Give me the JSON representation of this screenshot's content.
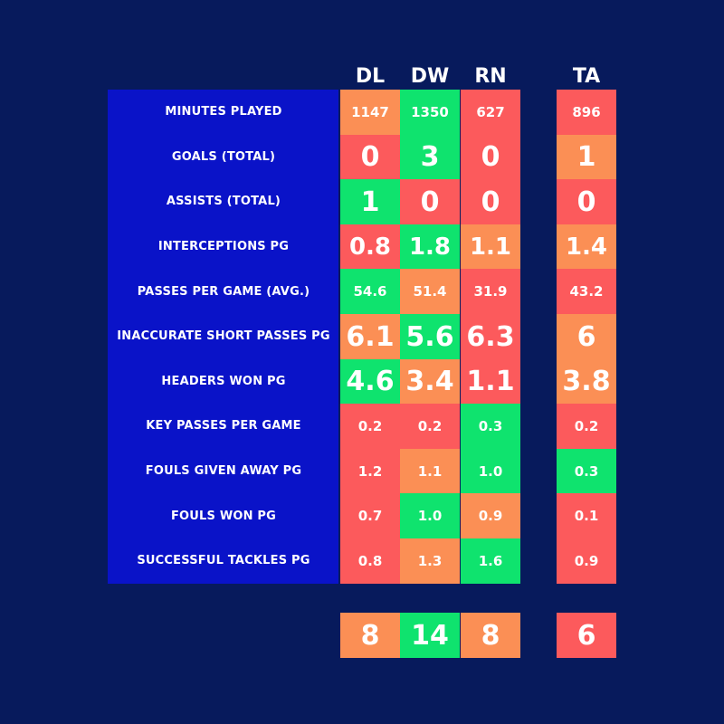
{
  "palette": {
    "background": "#071a5c",
    "label_panel": "#0a13c8",
    "green": "#0fe36e",
    "orange": "#fb8f55",
    "red": "#fc5a5c"
  },
  "chart_data": {
    "type": "table",
    "columns": [
      "DL",
      "DW",
      "RN",
      "TA"
    ],
    "rows": [
      {
        "label": "MINUTES PLAYED",
        "values": [
          "1147",
          "1350",
          "627",
          "896"
        ],
        "colors": [
          "orange",
          "green",
          "red",
          "red"
        ]
      },
      {
        "label": "GOALS (TOTAL)",
        "values": [
          "0",
          "3",
          "0",
          "1"
        ],
        "colors": [
          "red",
          "green",
          "red",
          "orange"
        ]
      },
      {
        "label": "ASSISTS (TOTAL)",
        "values": [
          "1",
          "0",
          "0",
          "0"
        ],
        "colors": [
          "green",
          "red",
          "red",
          "red"
        ]
      },
      {
        "label": "INTERCEPTIONS PG",
        "values": [
          "0.8",
          "1.8",
          "1.1",
          "1.4"
        ],
        "colors": [
          "red",
          "green",
          "orange",
          "orange"
        ]
      },
      {
        "label": "PASSES PER GAME (AVG.)",
        "values": [
          "54.6",
          "51.4",
          "31.9",
          "43.2"
        ],
        "colors": [
          "green",
          "orange",
          "red",
          "red"
        ]
      },
      {
        "label": "INACCURATE SHORT PASSES PG",
        "values": [
          "6.1",
          "5.6",
          "6.3",
          "6"
        ],
        "colors": [
          "orange",
          "green",
          "red",
          "orange"
        ]
      },
      {
        "label": "HEADERS WON PG",
        "values": [
          "4.6",
          "3.4",
          "1.1",
          "3.8"
        ],
        "colors": [
          "green",
          "orange",
          "red",
          "orange"
        ]
      },
      {
        "label": "KEY PASSES PER GAME",
        "values": [
          "0.2",
          "0.2",
          "0.3",
          "0.2"
        ],
        "colors": [
          "red",
          "red",
          "green",
          "red"
        ]
      },
      {
        "label": "FOULS GIVEN AWAY PG",
        "values": [
          "1.2",
          "1.1",
          "1.0",
          "0.3"
        ],
        "colors": [
          "red",
          "orange",
          "green",
          "green"
        ]
      },
      {
        "label": "FOULS WON PG",
        "values": [
          "0.7",
          "1.0",
          "0.9",
          "0.1"
        ],
        "colors": [
          "red",
          "green",
          "orange",
          "red"
        ]
      },
      {
        "label": "SUCCESSFUL TACKLES PG",
        "values": [
          "0.8",
          "1.3",
          "1.6",
          "0.9"
        ],
        "colors": [
          "red",
          "orange",
          "green",
          "red"
        ]
      }
    ],
    "totals": {
      "values": [
        "8",
        "14",
        "8",
        "6"
      ],
      "colors": [
        "orange",
        "green",
        "orange",
        "red"
      ]
    }
  }
}
